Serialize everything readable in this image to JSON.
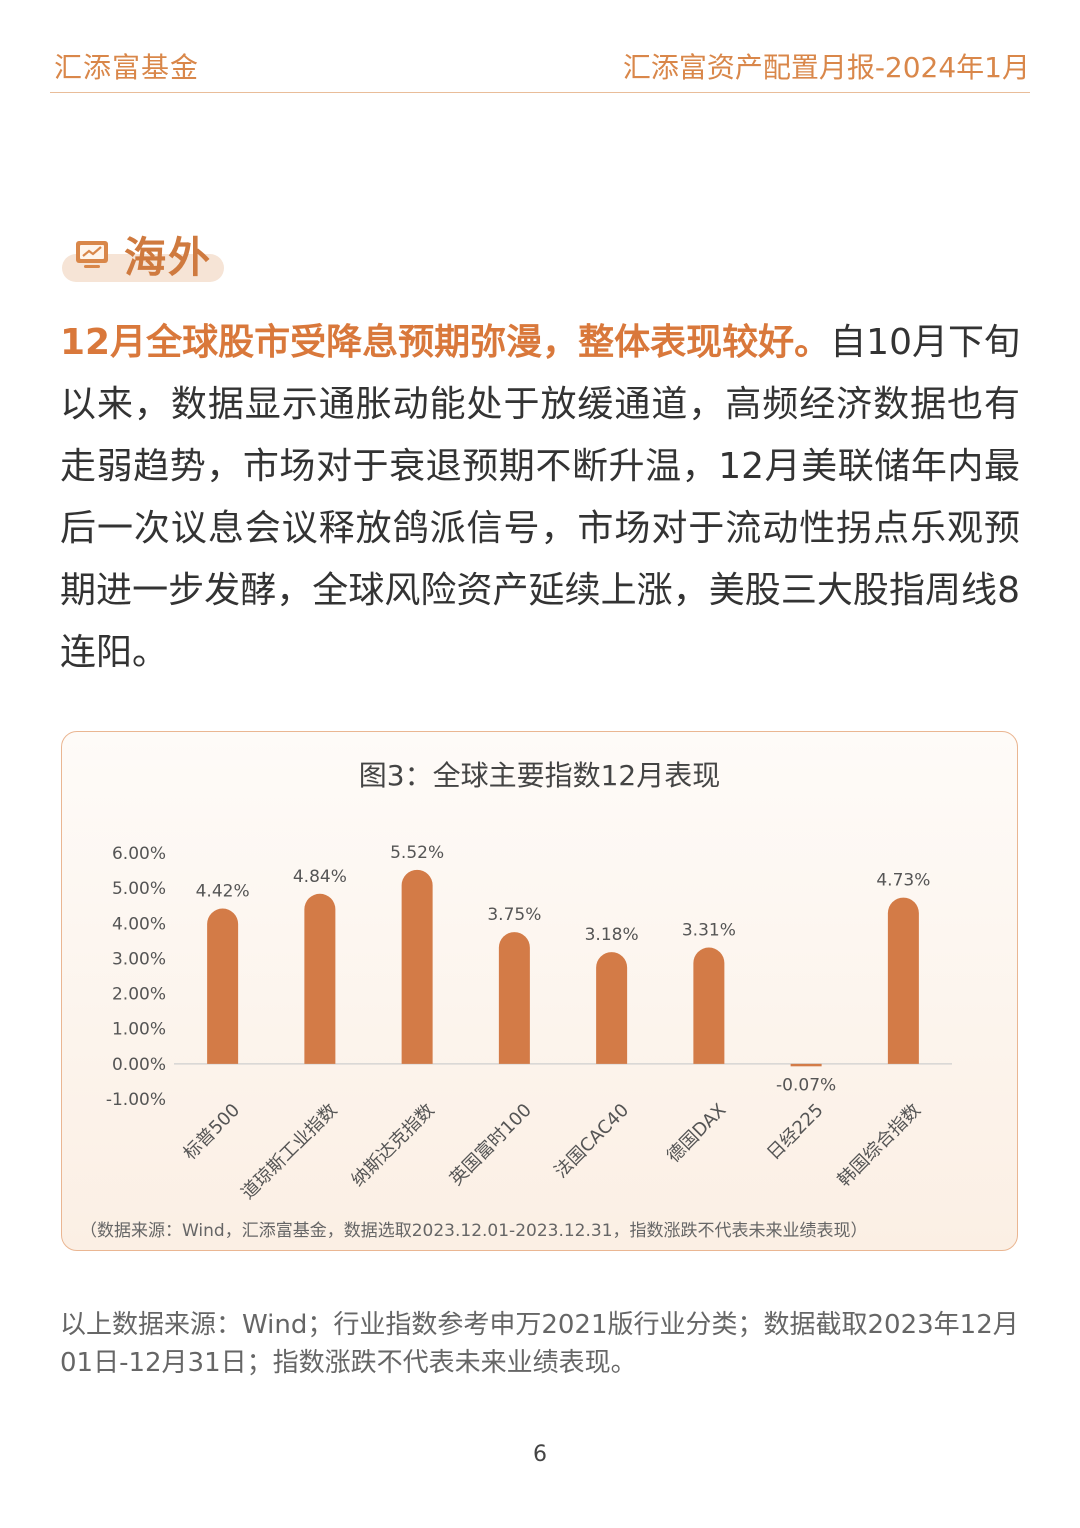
{
  "header": {
    "brand": "汇添富基金",
    "report": "汇添富资产配置月报-2024年1月"
  },
  "section": {
    "title": "海外",
    "icon": "chart-monitor-icon"
  },
  "paragraph": {
    "highlight": "12月全球股市受降息预期弥漫，整体表现较好。",
    "body": "自10月下旬以来，数据显示通胀动能处于放缓通道，高频经济数据也有走弱趋势，市场对于衰退预期不断升温，12月美联储年内最后一次议息会议释放鸽派信号，市场对于流动性拐点乐观预期进一步发酵，全球风险资产延续上涨，美股三大股指周线8连阳。"
  },
  "chart_data": {
    "type": "bar",
    "title": "图3：全球主要指数12月表现",
    "categories": [
      "标普500",
      "道琼斯工业指数",
      "纳斯达克指数",
      "英国富时100",
      "法国CAC40",
      "德国DAX",
      "日经225",
      "韩国综合指数"
    ],
    "values": [
      4.42,
      4.84,
      5.52,
      3.75,
      3.18,
      3.31,
      -0.07,
      4.73
    ],
    "data_labels": [
      "4.42%",
      "4.84%",
      "5.52%",
      "3.75%",
      "3.18%",
      "3.31%",
      "-0.07%",
      "4.73%"
    ],
    "y_ticks": [
      "6.00%",
      "5.00%",
      "4.00%",
      "3.00%",
      "2.00%",
      "1.00%",
      "0.00%",
      "-1.00%"
    ],
    "ylim": [
      -1,
      6
    ],
    "grid": false,
    "bar_color": "#d37b47",
    "note": "（数据来源：Wind，汇添富基金，数据选取2023.12.01-2023.12.31，指数涨跌不代表未来业绩表现）"
  },
  "source_note": "以上数据来源：Wind；行业指数参考申万2021版行业分类；数据截取2023年12月01日-12月31日；指数涨跌不代表未来业绩表现。",
  "page_number": "6",
  "colors": {
    "accent": "#d9874a",
    "bar": "#d37b47",
    "card_border": "#eab692"
  }
}
